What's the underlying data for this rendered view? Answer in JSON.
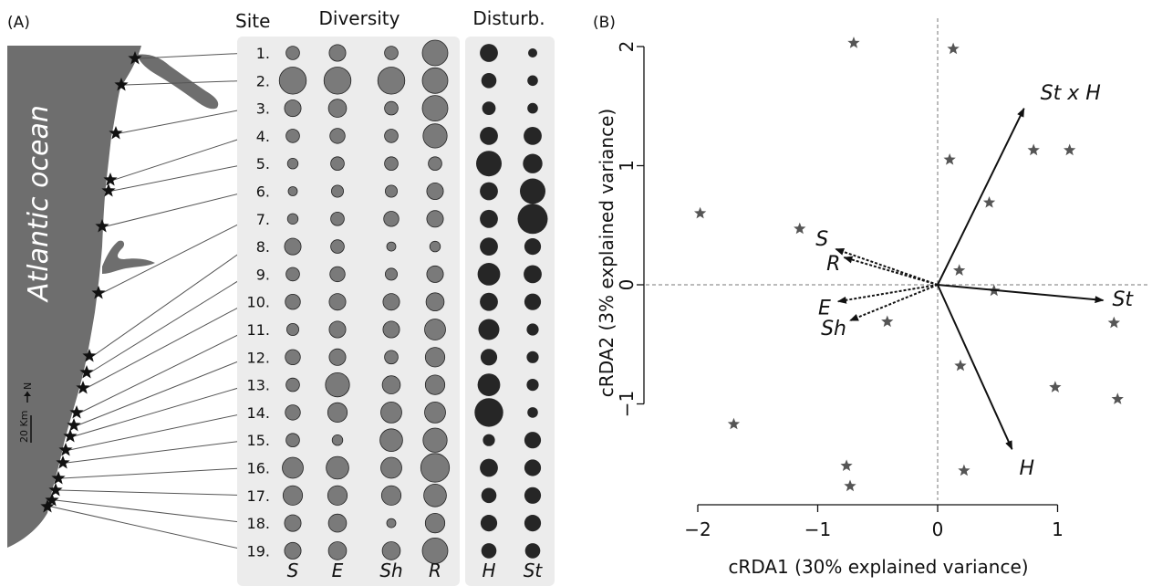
{
  "panel_a": {
    "label": "(A)",
    "ocean_label": "Atlantic ocean",
    "scale_label": "20 Km",
    "north_label": "N",
    "site_header": "Site",
    "diversity_header": "Diversity",
    "disturb_header": "Disturb.",
    "sites": [
      "1.",
      "2.",
      "3.",
      "4.",
      "5.",
      "6.",
      "7.",
      "8.",
      "9.",
      "10.",
      "11.",
      "12.",
      "13.",
      "14.",
      "15.",
      "16.",
      "17.",
      "18.",
      "19."
    ],
    "column_labels": [
      "S",
      "E",
      "Sh",
      "R",
      "H",
      "St"
    ],
    "colors": {
      "diversity_fill": "#7a7a7a",
      "disturb_fill": "#262626",
      "panel_bg": "#ececec",
      "land": "#6e6e6e"
    },
    "relative_sizes": {
      "S": [
        0.45,
        0.9,
        0.55,
        0.45,
        0.35,
        0.3,
        0.35,
        0.55,
        0.45,
        0.5,
        0.4,
        0.5,
        0.45,
        0.5,
        0.45,
        0.7,
        0.65,
        0.55,
        0.55
      ],
      "E": [
        0.55,
        0.9,
        0.6,
        0.5,
        0.45,
        0.4,
        0.45,
        0.45,
        0.5,
        0.55,
        0.55,
        0.55,
        0.8,
        0.65,
        0.35,
        0.75,
        0.65,
        0.6,
        0.6
      ],
      "Sh": [
        0.45,
        0.9,
        0.45,
        0.45,
        0.45,
        0.4,
        0.5,
        0.3,
        0.4,
        0.55,
        0.55,
        0.45,
        0.6,
        0.7,
        0.75,
        0.7,
        0.65,
        0.3,
        0.6
      ],
      "R": [
        0.85,
        0.85,
        0.85,
        0.8,
        0.45,
        0.55,
        0.55,
        0.35,
        0.55,
        0.6,
        0.7,
        0.65,
        0.65,
        0.7,
        0.8,
        0.95,
        0.75,
        0.65,
        0.85
      ],
      "H": [
        0.6,
        0.5,
        0.45,
        0.6,
        0.85,
        0.6,
        0.6,
        0.6,
        0.75,
        0.6,
        0.7,
        0.55,
        0.75,
        0.95,
        0.4,
        0.6,
        0.5,
        0.55,
        0.5
      ],
      "St": [
        0.3,
        0.35,
        0.35,
        0.6,
        0.65,
        0.85,
        1.0,
        0.55,
        0.6,
        0.55,
        0.4,
        0.4,
        0.4,
        0.35,
        0.55,
        0.55,
        0.55,
        0.55,
        0.5
      ]
    }
  },
  "panel_b": {
    "label": "(B)"
  },
  "chart_data": {
    "type": "scatter",
    "title": "",
    "xlabel": "cRDA1 (30% explained variance)",
    "ylabel": "cRDA2 (3% explained variance)",
    "xlim": [
      -2.05,
      1.8
    ],
    "ylim": [
      -1.85,
      2.2
    ],
    "xticks": [
      -2,
      -1,
      0,
      1
    ],
    "yticks": [
      -1,
      0,
      1,
      2
    ],
    "grid": false,
    "reference_lines": "dashed lines at x=0 and y=0",
    "point_marker": "star",
    "point_color": "#555555",
    "points": [
      {
        "x": -0.7,
        "y": 2.03
      },
      {
        "x": 0.13,
        "y": 1.98
      },
      {
        "x": 0.1,
        "y": 1.05
      },
      {
        "x": 0.8,
        "y": 1.13
      },
      {
        "x": 1.1,
        "y": 1.13
      },
      {
        "x": 0.43,
        "y": 0.69
      },
      {
        "x": -1.98,
        "y": 0.6
      },
      {
        "x": -1.15,
        "y": 0.47
      },
      {
        "x": 0.18,
        "y": 0.12
      },
      {
        "x": 0.47,
        "y": -0.05
      },
      {
        "x": -0.42,
        "y": -0.31
      },
      {
        "x": 1.47,
        "y": -0.32
      },
      {
        "x": 0.19,
        "y": -0.68
      },
      {
        "x": 0.98,
        "y": -0.86
      },
      {
        "x": 1.5,
        "y": -0.96
      },
      {
        "x": -1.7,
        "y": -1.17
      },
      {
        "x": -0.76,
        "y": -1.52
      },
      {
        "x": 0.22,
        "y": -1.56
      },
      {
        "x": -0.73,
        "y": -1.69
      }
    ],
    "vectors": [
      {
        "name": "St x H",
        "x": 0.72,
        "y": 1.48,
        "style": "solid"
      },
      {
        "name": "St",
        "x": 1.38,
        "y": -0.13,
        "style": "solid"
      },
      {
        "name": "H",
        "x": 0.62,
        "y": -1.38,
        "style": "solid"
      },
      {
        "name": "S",
        "x": -0.85,
        "y": 0.3,
        "style": "dashed"
      },
      {
        "name": "R",
        "x": -0.78,
        "y": 0.23,
        "style": "dashed"
      },
      {
        "name": "E",
        "x": -0.83,
        "y": -0.14,
        "style": "dashed"
      },
      {
        "name": "Sh",
        "x": -0.73,
        "y": -0.3,
        "style": "dashed"
      }
    ]
  }
}
